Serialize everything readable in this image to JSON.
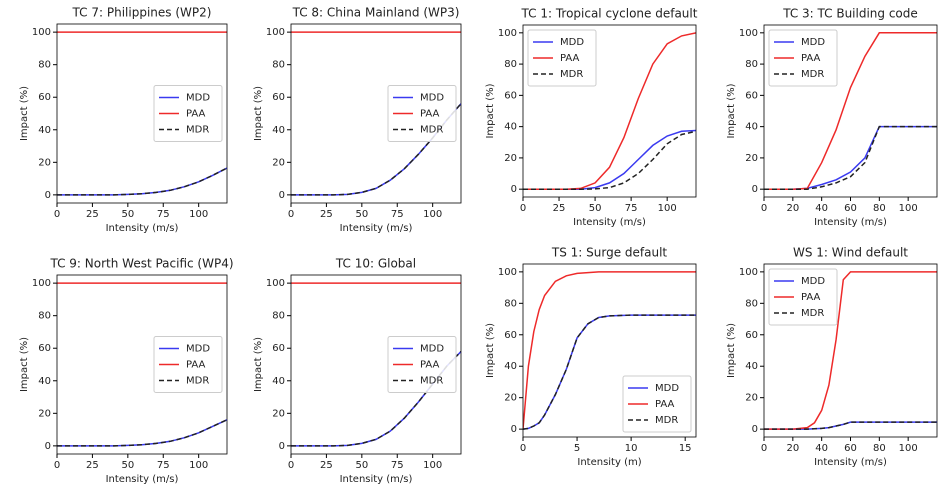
{
  "chart_data": [
    {
      "type": "line",
      "title": "TC 7: Philippines (WP2)",
      "x_label": "Intensity (m/s)",
      "y_label": "Impact (%)",
      "x": [
        0,
        10,
        20,
        30,
        40,
        50,
        60,
        70,
        80,
        90,
        100,
        110,
        120
      ],
      "series": [
        {
          "name": "MDD",
          "color": "#3a3af0",
          "dash": false,
          "values": [
            0,
            0,
            0,
            0,
            0,
            0.3,
            0.7,
            1.5,
            2.8,
            5,
            8,
            12,
            16.5
          ]
        },
        {
          "name": "PAA",
          "color": "#ee2a2a",
          "dash": false,
          "values": [
            100,
            100,
            100,
            100,
            100,
            100,
            100,
            100,
            100,
            100,
            100,
            100,
            100
          ]
        },
        {
          "name": "MDR",
          "color": "#222222",
          "dash": true,
          "values": [
            0,
            0,
            0,
            0,
            0,
            0.3,
            0.7,
            1.5,
            2.8,
            5,
            8,
            12,
            16.5
          ]
        }
      ],
      "xlim": [
        0,
        120
      ],
      "xticks": [
        0,
        25,
        50,
        75,
        100
      ],
      "ylim": [
        -5,
        105
      ],
      "yticks": [
        0,
        20,
        40,
        60,
        80,
        100
      ],
      "legend": "center right",
      "grid": false
    },
    {
      "type": "line",
      "title": "TC 8: China Mainland (WP3)",
      "x_label": "Intensity (m/s)",
      "y_label": "Impact (%)",
      "x": [
        0,
        10,
        20,
        30,
        40,
        50,
        60,
        70,
        80,
        90,
        100,
        110,
        120
      ],
      "series": [
        {
          "name": "MDD",
          "color": "#3a3af0",
          "dash": false,
          "values": [
            0,
            0,
            0,
            0,
            0.3,
            1.5,
            4,
            9,
            16,
            25,
            35,
            46,
            56
          ]
        },
        {
          "name": "PAA",
          "color": "#ee2a2a",
          "dash": false,
          "values": [
            100,
            100,
            100,
            100,
            100,
            100,
            100,
            100,
            100,
            100,
            100,
            100,
            100
          ]
        },
        {
          "name": "MDR",
          "color": "#222222",
          "dash": true,
          "values": [
            0,
            0,
            0,
            0,
            0.3,
            1.5,
            4,
            9,
            16,
            25,
            35,
            46,
            56
          ]
        }
      ],
      "xlim": [
        0,
        120
      ],
      "xticks": [
        0,
        25,
        50,
        75,
        100
      ],
      "ylim": [
        -5,
        105
      ],
      "yticks": [
        0,
        20,
        40,
        60,
        80,
        100
      ],
      "legend": "center right",
      "grid": false
    },
    {
      "type": "line",
      "title": "TC 1: Tropical cyclone default",
      "x_label": "Intensity (m/s)",
      "y_label": "Impact (%)",
      "x": [
        0,
        10,
        20,
        30,
        40,
        50,
        60,
        70,
        80,
        90,
        100,
        110,
        120
      ],
      "series": [
        {
          "name": "MDD",
          "color": "#3a3af0",
          "dash": false,
          "values": [
            0,
            0,
            0,
            0,
            0,
            1,
            4,
            10,
            19,
            28,
            34,
            37,
            37.5
          ]
        },
        {
          "name": "PAA",
          "color": "#ee2a2a",
          "dash": false,
          "values": [
            0,
            0,
            0,
            0,
            0.5,
            4,
            14,
            33,
            58,
            80,
            93,
            98,
            100
          ]
        },
        {
          "name": "MDR",
          "color": "#222222",
          "dash": true,
          "values": [
            0,
            0,
            0,
            0,
            0,
            0.2,
            1,
            4,
            10,
            19,
            29,
            35,
            37
          ]
        }
      ],
      "xlim": [
        0,
        120
      ],
      "xticks": [
        0,
        25,
        50,
        75,
        100
      ],
      "ylim": [
        -5,
        105
      ],
      "yticks": [
        0,
        20,
        40,
        60,
        80,
        100
      ],
      "legend": "upper left",
      "grid": false
    },
    {
      "type": "line",
      "title": "TC 3: TC Building code",
      "x_label": "Intensity (m/s)",
      "y_label": "Impact (%)",
      "x": [
        0,
        10,
        20,
        30,
        40,
        50,
        60,
        70,
        80,
        90,
        100,
        110,
        120
      ],
      "series": [
        {
          "name": "MDD",
          "color": "#3a3af0",
          "dash": false,
          "values": [
            0,
            0,
            0,
            0.5,
            3,
            6,
            11,
            20,
            40,
            40,
            40,
            40,
            40
          ]
        },
        {
          "name": "PAA",
          "color": "#ee2a2a",
          "dash": false,
          "values": [
            0,
            0,
            0,
            0.5,
            17,
            38,
            65,
            85,
            100,
            100,
            100,
            100,
            100
          ]
        },
        {
          "name": "MDR",
          "color": "#222222",
          "dash": true,
          "values": [
            0,
            0,
            0,
            0,
            1.5,
            4,
            8,
            17,
            40,
            40,
            40,
            40,
            40
          ]
        }
      ],
      "xlim": [
        0,
        120
      ],
      "xticks": [
        0,
        20,
        40,
        60,
        80,
        100
      ],
      "ylim": [
        -5,
        105
      ],
      "yticks": [
        0,
        20,
        40,
        60,
        80,
        100
      ],
      "legend": "upper left",
      "grid": false
    },
    {
      "type": "line",
      "title": "TC 9: North West Pacific (WP4)",
      "x_label": "Intensity (m/s)",
      "y_label": "Impact (%)",
      "x": [
        0,
        10,
        20,
        30,
        40,
        50,
        60,
        70,
        80,
        90,
        100,
        110,
        120
      ],
      "series": [
        {
          "name": "MDD",
          "color": "#3a3af0",
          "dash": false,
          "values": [
            0,
            0,
            0,
            0,
            0,
            0.3,
            0.7,
            1.5,
            2.8,
            5,
            8,
            12,
            16
          ]
        },
        {
          "name": "PAA",
          "color": "#ee2a2a",
          "dash": false,
          "values": [
            100,
            100,
            100,
            100,
            100,
            100,
            100,
            100,
            100,
            100,
            100,
            100,
            100
          ]
        },
        {
          "name": "MDR",
          "color": "#222222",
          "dash": true,
          "values": [
            0,
            0,
            0,
            0,
            0,
            0.3,
            0.7,
            1.5,
            2.8,
            5,
            8,
            12,
            16
          ]
        }
      ],
      "xlim": [
        0,
        120
      ],
      "xticks": [
        0,
        25,
        50,
        75,
        100
      ],
      "ylim": [
        -5,
        105
      ],
      "yticks": [
        0,
        20,
        40,
        60,
        80,
        100
      ],
      "legend": "center right",
      "grid": false
    },
    {
      "type": "line",
      "title": "TC 10: Global",
      "x_label": "Intensity (m/s)",
      "y_label": "Impact (%)",
      "x": [
        0,
        10,
        20,
        30,
        40,
        50,
        60,
        70,
        80,
        90,
        100,
        110,
        120
      ],
      "series": [
        {
          "name": "MDD",
          "color": "#3a3af0",
          "dash": false,
          "values": [
            0,
            0,
            0,
            0,
            0.3,
            1.5,
            4,
            9,
            17,
            27,
            38,
            49,
            58
          ]
        },
        {
          "name": "PAA",
          "color": "#ee2a2a",
          "dash": false,
          "values": [
            100,
            100,
            100,
            100,
            100,
            100,
            100,
            100,
            100,
            100,
            100,
            100,
            100
          ]
        },
        {
          "name": "MDR",
          "color": "#222222",
          "dash": true,
          "values": [
            0,
            0,
            0,
            0,
            0.3,
            1.5,
            4,
            9,
            17,
            27,
            38,
            49,
            58
          ]
        }
      ],
      "xlim": [
        0,
        120
      ],
      "xticks": [
        0,
        25,
        50,
        75,
        100
      ],
      "ylim": [
        -5,
        105
      ],
      "yticks": [
        0,
        20,
        40,
        60,
        80,
        100
      ],
      "legend": "center right",
      "grid": false
    },
    {
      "type": "line",
      "title": "TS 1: Surge default",
      "x_label": "Intensity (m)",
      "y_label": "Impact (%)",
      "x": [
        0,
        0.5,
        1,
        1.5,
        2,
        3,
        4,
        5,
        6,
        7,
        8,
        10,
        12,
        14,
        16
      ],
      "series": [
        {
          "name": "MDD",
          "color": "#3a3af0",
          "dash": false,
          "values": [
            0,
            0.5,
            2,
            4,
            9,
            22,
            38,
            58,
            67,
            71,
            72,
            72.5,
            72.5,
            72.5,
            72.5
          ]
        },
        {
          "name": "PAA",
          "color": "#ee2a2a",
          "dash": false,
          "values": [
            0,
            40,
            62,
            76,
            85,
            94,
            97.5,
            99,
            99.5,
            100,
            100,
            100,
            100,
            100,
            100
          ]
        },
        {
          "name": "MDR",
          "color": "#222222",
          "dash": true,
          "values": [
            0,
            0.5,
            2,
            4,
            9,
            22,
            38,
            58,
            67,
            71,
            72,
            72.5,
            72.5,
            72.5,
            72.5
          ]
        }
      ],
      "xlim": [
        0,
        16
      ],
      "xticks": [
        0,
        5,
        10,
        15
      ],
      "ylim": [
        -5,
        105
      ],
      "yticks": [
        0,
        20,
        40,
        60,
        80,
        100
      ],
      "legend": "lower right",
      "grid": false
    },
    {
      "type": "line",
      "title": "WS 1: Wind default",
      "x_label": "Intensity (m/s)",
      "y_label": "Impact (%)",
      "x": [
        0,
        10,
        20,
        30,
        35,
        40,
        45,
        50,
        55,
        60,
        70,
        80,
        90,
        100,
        110,
        120
      ],
      "series": [
        {
          "name": "MDD",
          "color": "#3a3af0",
          "dash": false,
          "values": [
            0,
            0,
            0,
            0,
            0.2,
            0.5,
            1,
            2,
            3,
            4.5,
            4.5,
            4.5,
            4.5,
            4.5,
            4.5,
            4.5
          ]
        },
        {
          "name": "PAA",
          "color": "#ee2a2a",
          "dash": false,
          "values": [
            0,
            0,
            0,
            1,
            4,
            12,
            28,
            57,
            95,
            100,
            100,
            100,
            100,
            100,
            100,
            100
          ]
        },
        {
          "name": "MDR",
          "color": "#222222",
          "dash": true,
          "values": [
            0,
            0,
            0,
            0,
            0.2,
            0.5,
            1,
            2,
            3,
            4.5,
            4.5,
            4.5,
            4.5,
            4.5,
            4.5,
            4.5
          ]
        }
      ],
      "xlim": [
        0,
        120
      ],
      "xticks": [
        0,
        20,
        40,
        60,
        80,
        100
      ],
      "ylim": [
        -5,
        105
      ],
      "yticks": [
        0,
        20,
        40,
        60,
        80,
        100
      ],
      "legend": "upper left",
      "grid": false
    }
  ]
}
